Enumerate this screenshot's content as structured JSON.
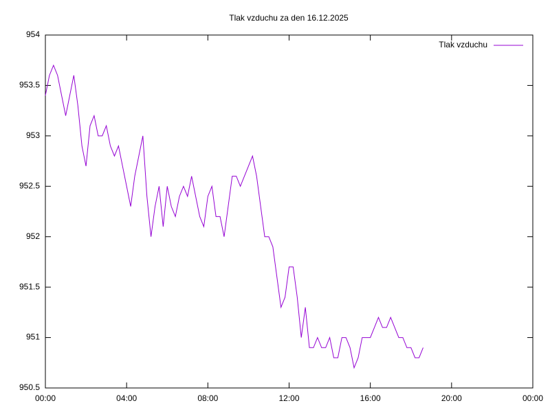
{
  "chart_data": {
    "type": "line",
    "title": "Tlak vzduchu za den 16.12.2025",
    "legend": "top-right",
    "x": [
      0,
      0.2,
      0.4,
      0.6,
      0.8,
      1,
      1.2,
      1.4,
      1.6,
      1.8,
      2,
      2.2,
      2.4,
      2.6,
      2.8,
      3,
      3.2,
      3.4,
      3.6,
      3.8,
      4,
      4.2,
      4.4,
      4.6,
      4.8,
      5,
      5.2,
      5.4,
      5.6,
      5.8,
      6,
      6.2,
      6.4,
      6.6,
      6.8,
      7,
      7.2,
      7.4,
      7.6,
      7.8,
      8,
      8.2,
      8.4,
      8.6,
      8.8,
      9,
      9.2,
      9.4,
      9.6,
      9.8,
      10,
      10.2,
      10.4,
      10.6,
      10.8,
      11,
      11.2,
      11.4,
      11.6,
      11.8,
      12,
      12.2,
      12.4,
      12.6,
      12.8,
      13,
      13.2,
      13.4,
      13.6,
      13.8,
      14,
      14.2,
      14.4,
      14.6,
      14.8,
      15,
      15.2,
      15.4,
      15.6,
      15.8,
      16,
      16.2,
      16.4,
      16.6,
      16.8,
      17,
      17.2,
      17.4,
      17.6,
      17.8,
      18,
      18.2,
      18.4,
      18.6
    ],
    "series": [
      {
        "name": "Tlak vzduchu",
        "color": "#9400d3",
        "values": [
          953.4,
          953.6,
          953.7,
          953.6,
          953.4,
          953.2,
          953.4,
          953.6,
          953.3,
          952.9,
          952.7,
          953.1,
          953.2,
          953.0,
          953.0,
          953.1,
          952.9,
          952.8,
          952.9,
          952.7,
          952.5,
          952.3,
          952.6,
          952.8,
          953.0,
          952.4,
          952.0,
          952.3,
          952.5,
          952.1,
          952.5,
          952.3,
          952.2,
          952.4,
          952.5,
          952.4,
          952.6,
          952.4,
          952.2,
          952.1,
          952.4,
          952.5,
          952.2,
          952.2,
          952.0,
          952.3,
          952.6,
          952.6,
          952.5,
          952.6,
          952.7,
          952.8,
          952.6,
          952.3,
          952.0,
          952.0,
          951.9,
          951.6,
          951.3,
          951.4,
          951.7,
          951.7,
          951.4,
          951.0,
          951.3,
          950.9,
          950.9,
          951.0,
          950.9,
          950.9,
          951.0,
          950.8,
          950.8,
          951.0,
          951.0,
          950.9,
          950.7,
          950.8,
          951.0,
          951.0,
          951.0,
          951.1,
          951.2,
          951.1,
          951.1,
          951.2,
          951.1,
          951.0,
          951.0,
          950.9,
          950.9,
          950.8,
          950.8,
          950.9
        ]
      }
    ],
    "xlim": [
      0,
      24
    ],
    "xticks": [
      {
        "value": 0,
        "label": "00:00"
      },
      {
        "value": 4,
        "label": "04:00"
      },
      {
        "value": 8,
        "label": "08:00"
      },
      {
        "value": 12,
        "label": "12:00"
      },
      {
        "value": 16,
        "label": "16:00"
      },
      {
        "value": 20,
        "label": "20:00"
      },
      {
        "value": 24,
        "label": "00:00"
      }
    ],
    "ylim": [
      950.5,
      954
    ],
    "yticks": [
      950.5,
      951,
      951.5,
      952,
      952.5,
      953,
      953.5,
      954
    ],
    "grid": false
  }
}
